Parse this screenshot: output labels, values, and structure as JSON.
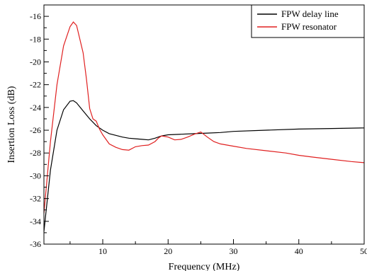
{
  "chart_data": {
    "type": "line",
    "title": "",
    "xlabel": "Frequency (MHz)",
    "ylabel": "Insertion Loss (dB)",
    "xlim": [
      1,
      50
    ],
    "ylim": [
      -36,
      -15
    ],
    "x_ticks": [
      10,
      20,
      30,
      40,
      50
    ],
    "y_ticks": [
      -36,
      -34,
      -32,
      -30,
      -28,
      -26,
      -24,
      -22,
      -20,
      -18,
      -16
    ],
    "x_tick_labels": [
      "10",
      "20",
      "30",
      "40",
      "50"
    ],
    "y_tick_labels": [
      "-36",
      "-34",
      "-32",
      "-30",
      "-28",
      "-26",
      "-24",
      "-22",
      "-20",
      "-18",
      "-16"
    ],
    "grid": false,
    "legend_position": "top-right",
    "series": [
      {
        "name": "FPW delay line",
        "color": "#000000",
        "points": [
          [
            1,
            -34.9
          ],
          [
            2,
            -29.5
          ],
          [
            3,
            -26.0
          ],
          [
            4,
            -24.2
          ],
          [
            5,
            -23.45
          ],
          [
            5.5,
            -23.4
          ],
          [
            6,
            -23.6
          ],
          [
            7,
            -24.3
          ],
          [
            8,
            -25.0
          ],
          [
            9,
            -25.6
          ],
          [
            10,
            -26.0
          ],
          [
            11,
            -26.3
          ],
          [
            12,
            -26.45
          ],
          [
            13,
            -26.6
          ],
          [
            14,
            -26.7
          ],
          [
            15,
            -26.75
          ],
          [
            16,
            -26.8
          ],
          [
            17,
            -26.85
          ],
          [
            18,
            -26.7
          ],
          [
            19,
            -26.5
          ],
          [
            20,
            -26.4
          ],
          [
            22,
            -26.35
          ],
          [
            24,
            -26.3
          ],
          [
            26,
            -26.25
          ],
          [
            28,
            -26.2
          ],
          [
            30,
            -26.1
          ],
          [
            35,
            -26.0
          ],
          [
            40,
            -25.9
          ],
          [
            45,
            -25.85
          ],
          [
            50,
            -25.8
          ]
        ]
      },
      {
        "name": "FPW resonator",
        "color": "#e02020",
        "points": [
          [
            1,
            -33.3
          ],
          [
            2,
            -27.0
          ],
          [
            3,
            -22.0
          ],
          [
            4,
            -18.6
          ],
          [
            5,
            -16.9
          ],
          [
            5.5,
            -16.5
          ],
          [
            6,
            -16.8
          ],
          [
            7,
            -19.2
          ],
          [
            7.5,
            -21.5
          ],
          [
            8,
            -24.1
          ],
          [
            8.5,
            -25.0
          ],
          [
            9,
            -25.2
          ],
          [
            9.5,
            -25.9
          ],
          [
            10,
            -26.4
          ],
          [
            11,
            -27.2
          ],
          [
            12,
            -27.5
          ],
          [
            13,
            -27.7
          ],
          [
            14,
            -27.75
          ],
          [
            15,
            -27.45
          ],
          [
            16,
            -27.35
          ],
          [
            17,
            -27.3
          ],
          [
            18,
            -27.0
          ],
          [
            18.5,
            -26.7
          ],
          [
            19,
            -26.5
          ],
          [
            19.5,
            -26.55
          ],
          [
            20,
            -26.6
          ],
          [
            21,
            -26.85
          ],
          [
            22,
            -26.8
          ],
          [
            23,
            -26.6
          ],
          [
            24,
            -26.35
          ],
          [
            25,
            -26.15
          ],
          [
            26,
            -26.6
          ],
          [
            27,
            -27.0
          ],
          [
            28,
            -27.2
          ],
          [
            30,
            -27.4
          ],
          [
            32,
            -27.6
          ],
          [
            35,
            -27.8
          ],
          [
            38,
            -28.0
          ],
          [
            40,
            -28.2
          ],
          [
            42,
            -28.35
          ],
          [
            45,
            -28.55
          ],
          [
            48,
            -28.75
          ],
          [
            50,
            -28.85
          ]
        ]
      }
    ]
  }
}
